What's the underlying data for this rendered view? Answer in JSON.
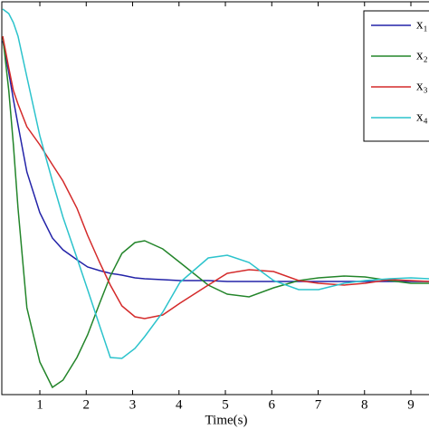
{
  "chart_data": {
    "type": "line",
    "x_label": "Time(s)",
    "x": [
      0.2,
      0.33,
      0.43,
      0.53,
      0.72,
      1.0,
      1.27,
      1.5,
      1.8,
      2.03,
      2.29,
      2.52,
      2.77,
      3.05,
      3.26,
      3.65,
      4.02,
      4.63,
      5.04,
      5.51,
      6.04,
      6.58,
      7.01,
      7.56,
      8.01,
      8.54,
      9.0,
      9.39
    ],
    "series": [
      {
        "name": "x₁",
        "color": "#2323a8",
        "values": [
          2.66,
          2.31,
          2.01,
          1.73,
          1.21,
          0.76,
          0.48,
          0.35,
          0.24,
          0.16,
          0.12,
          0.09,
          0.07,
          0.04,
          0.03,
          0.02,
          0.01,
          0.01,
          0,
          0,
          0,
          0,
          0,
          0,
          0,
          0,
          0,
          0
        ]
      },
      {
        "name": "x₂",
        "color": "#23852a",
        "values": [
          2.71,
          2.11,
          1.51,
          0.81,
          -0.29,
          -0.89,
          -1.17,
          -1.09,
          -0.84,
          -0.59,
          -0.24,
          0.06,
          0.31,
          0.43,
          0.45,
          0.36,
          0.21,
          -0.04,
          -0.14,
          -0.17,
          -0.07,
          0.01,
          0.04,
          0.06,
          0.05,
          0.01,
          -0.02,
          -0.02
        ]
      },
      {
        "name": "x₃",
        "color": "#d42a2a",
        "values": [
          2.71,
          2.36,
          2.11,
          1.96,
          1.71,
          1.51,
          1.29,
          1.11,
          0.81,
          0.51,
          0.21,
          -0.04,
          -0.27,
          -0.39,
          -0.41,
          -0.37,
          -0.24,
          -0.04,
          0.09,
          0.13,
          0.11,
          0.01,
          -0.02,
          -0.04,
          -0.02,
          0.02,
          0.01,
          0
        ]
      },
      {
        "name": "x₄",
        "color": "#2cc3cc",
        "values": [
          3.01,
          2.96,
          2.86,
          2.71,
          2.26,
          1.61,
          1.11,
          0.71,
          0.26,
          -0.09,
          -0.49,
          -0.84,
          -0.85,
          -0.74,
          -0.61,
          -0.34,
          -0.01,
          0.26,
          0.29,
          0.21,
          0.01,
          -0.09,
          -0.09,
          -0.02,
          0.01,
          0.03,
          0.04,
          0.03
        ]
      }
    ],
    "xlim": [
      0.18,
      9.39
    ],
    "xticks": [
      1,
      2,
      3,
      4,
      5,
      6,
      7,
      8,
      9
    ],
    "ylim": [
      -1.25,
      3.09
    ],
    "yticks": [],
    "legend": "top-right"
  }
}
